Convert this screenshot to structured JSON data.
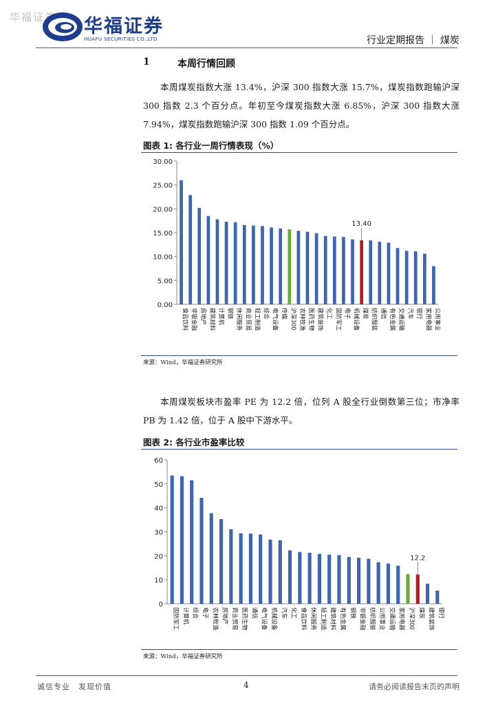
{
  "header": {
    "watermark": "华福证券",
    "brand_cn": "华福证券",
    "brand_en": "HUAFU SECURITIES CO.,LTD.",
    "report_type": "行业定期报告 ｜ 煤炭"
  },
  "section": {
    "number": "1",
    "title": "本周行情回顾",
    "paragraph1": "本周煤炭指数大涨 13.4%，沪深 300 指数大涨 15.7%，煤炭指数跑输沪深 300 指数 2.3 个百分点。年初至今煤炭指数大涨 6.85%，沪深 300 指数大涨 7.94%，煤炭指数跑输沪深 300 指数 1.09 个百分点。",
    "paragraph2": "本周煤炭板块市盈率 PE 为 12.2 倍，位列 A 股全行业倒数第三位；市净率 PB 为 1.42 倍，位于 A 股中下游水平。"
  },
  "figures": {
    "fig1_title": "图表 1:  各行业一周行情表现（%）",
    "fig1_source": "来源：Wind，华福证券研究所",
    "fig2_title": "图表 2:  各行业市盈率比较",
    "fig2_source": "来源：Wind，华福证券研究所"
  },
  "colors": {
    "bar": "#3d65b0",
    "highlight_coal": "#c0161c",
    "highlight_hs300": "#6aaa36",
    "brand": "#1e3d8f"
  },
  "chart_data": [
    {
      "type": "bar",
      "ylim": [
        0,
        30
      ],
      "yticks": [
        "0.00",
        "5.00",
        "10.00",
        "15.00",
        "20.00",
        "25.00",
        "30.00"
      ],
      "categories": [
        "食品饮料",
        "非银金融",
        "房地产",
        "建筑材料",
        "计算机",
        "钢铁",
        "休闲服务",
        "商业贸易",
        "轻工制造",
        "综合",
        "电气设备",
        "传媒",
        "沪深300",
        "农林牧渔",
        "医药生物",
        "建筑装饰",
        "化工",
        "国防军工",
        "电子",
        "机械设备",
        "煤炭",
        "纺织服装",
        "通信",
        "有色金属",
        "交通运输",
        "汽车",
        "银行",
        "家用电器",
        "公用事业"
      ],
      "values": [
        26.0,
        22.9,
        20.2,
        18.5,
        17.8,
        17.3,
        17.2,
        16.6,
        16.5,
        16.4,
        16.1,
        15.9,
        15.7,
        15.4,
        15.2,
        14.9,
        14.3,
        14.2,
        14.1,
        13.6,
        13.4,
        13.4,
        13.1,
        12.9,
        11.8,
        11.2,
        11.1,
        10.6,
        8.0
      ],
      "annotation": "13.40"
    },
    {
      "type": "bar",
      "ylim": [
        0,
        60
      ],
      "yticks": [
        "0",
        "10",
        "20",
        "30",
        "40",
        "50",
        "60"
      ],
      "categories": [
        "国防军工",
        "计算机",
        "综合",
        "电子",
        "农林牧渔",
        "房地产",
        "商业贸易",
        "医药生物",
        "通信",
        "电气设备",
        "机械设备",
        "汽车",
        "化工",
        "食品饮料",
        "休闲服务",
        "轻工制造",
        "建筑材料",
        "有色金属",
        "钢铁",
        "非银金融",
        "纺织服装",
        "公用事业",
        "交通运输",
        "家用电器",
        "沪深300",
        "煤炭",
        "建筑装饰",
        "银行"
      ],
      "values": [
        53.5,
        53.2,
        51.5,
        44.2,
        37.8,
        35.3,
        31.1,
        29.4,
        29.3,
        28.9,
        26.8,
        26.5,
        22.3,
        21.6,
        21.3,
        20.8,
        20.5,
        20.3,
        19.5,
        19.2,
        18.8,
        17.3,
        16.8,
        15.9,
        12.4,
        12.2,
        8.4,
        5.5
      ],
      "annotation": "12.2"
    }
  ]
}
